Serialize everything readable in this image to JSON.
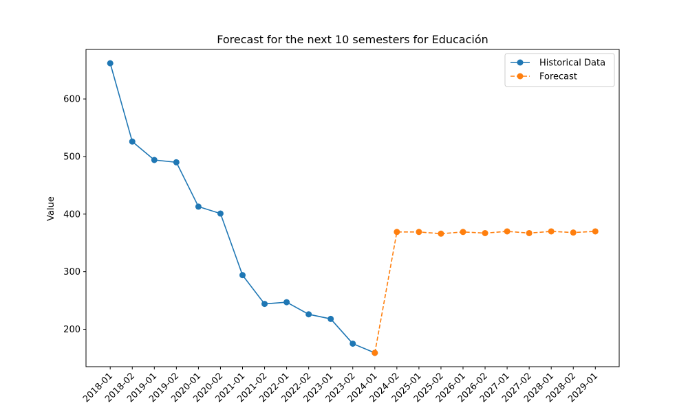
{
  "chart_data": {
    "type": "line",
    "title": "Forecast for the next 10 semesters for Educación",
    "xlabel": "",
    "ylabel": "Value",
    "categories": [
      "2018-01",
      "2018-02",
      "2019-01",
      "2019-02",
      "2020-01",
      "2020-02",
      "2021-01",
      "2021-02",
      "2022-01",
      "2022-02",
      "2023-01",
      "2023-02",
      "2024-01",
      "2024-02",
      "2025-01",
      "2025-02",
      "2026-01",
      "2026-02",
      "2027-01",
      "2027-02",
      "2028-01",
      "2028-02",
      "2029-01"
    ],
    "yticks": [
      200,
      300,
      400,
      500,
      600
    ],
    "ylim": [
      135,
      686
    ],
    "grid": false,
    "legend_position": "top-right",
    "series": [
      {
        "name": "Historical Data",
        "color": "#1f77b4",
        "style": "solid",
        "x": [
          "2018-01",
          "2018-02",
          "2019-01",
          "2019-02",
          "2020-01",
          "2020-02",
          "2021-01",
          "2021-02",
          "2022-01",
          "2022-02",
          "2023-01",
          "2023-02",
          "2024-01"
        ],
        "values": [
          662,
          526,
          494,
          490,
          413,
          401,
          294,
          244,
          247,
          226,
          218,
          175,
          159
        ]
      },
      {
        "name": "Forecast",
        "color": "#ff7f0e",
        "style": "dashed",
        "x": [
          "2024-01",
          "2024-02",
          "2025-01",
          "2025-02",
          "2026-01",
          "2026-02",
          "2027-01",
          "2027-02",
          "2028-01",
          "2028-02",
          "2029-01"
        ],
        "values": [
          159,
          369,
          369,
          366,
          369,
          367,
          370,
          367,
          370,
          368,
          370
        ]
      }
    ]
  }
}
